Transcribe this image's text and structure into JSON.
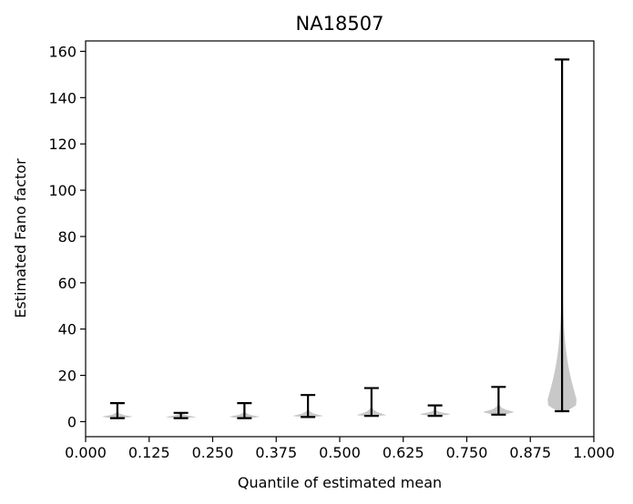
{
  "chart_data": {
    "type": "violin",
    "title": "NA18507",
    "xlabel": "Quantile of estimated mean",
    "ylabel": "Estimated Fano factor",
    "xlim": [
      0.0,
      1.0
    ],
    "ylim": [
      -6.5,
      164.5
    ],
    "xticks": [
      "0.000",
      "0.125",
      "0.250",
      "0.375",
      "0.500",
      "0.625",
      "0.750",
      "0.875",
      "1.000"
    ],
    "yticks": [
      "0",
      "20",
      "40",
      "60",
      "80",
      "100",
      "120",
      "140",
      "160"
    ],
    "grid": false,
    "violin_color": "#c8c8c8",
    "whisker_color": "#000000",
    "violins": [
      {
        "x": 0.0625,
        "min": 1.5,
        "max": 8.0,
        "mode": 2.2,
        "half_width": 0.03
      },
      {
        "x": 0.1875,
        "min": 1.5,
        "max": 3.8,
        "mode": 2.0,
        "half_width": 0.03
      },
      {
        "x": 0.3125,
        "min": 1.5,
        "max": 8.0,
        "mode": 2.2,
        "half_width": 0.03
      },
      {
        "x": 0.4375,
        "min": 2.0,
        "max": 11.5,
        "mode": 2.5,
        "half_width": 0.03
      },
      {
        "x": 0.5625,
        "min": 2.5,
        "max": 14.5,
        "mode": 2.8,
        "half_width": 0.03
      },
      {
        "x": 0.6875,
        "min": 2.5,
        "max": 7.0,
        "mode": 3.3,
        "half_width": 0.03
      },
      {
        "x": 0.8125,
        "min": 3.0,
        "max": 15.0,
        "mode": 4.2,
        "half_width": 0.03
      },
      {
        "x": 0.9375,
        "min": 4.5,
        "max": 156.5,
        "mode": 8.0,
        "half_width": 0.03
      }
    ]
  }
}
